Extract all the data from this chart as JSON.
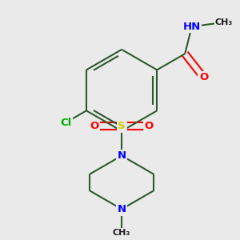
{
  "bg_color": "#eaeaea",
  "bond_color": "#2d5a2d",
  "bond_width": 1.5,
  "atom_colors": {
    "C": "#1a1a1a",
    "N": "#0000ff",
    "O": "#ff0000",
    "S": "#cccc00",
    "Cl": "#00aa00",
    "H": "#1a1a1a"
  },
  "fig_size": [
    3.0,
    3.0
  ],
  "dpi": 100,
  "xlim": [
    30,
    270
  ],
  "ylim": [
    10,
    290
  ]
}
